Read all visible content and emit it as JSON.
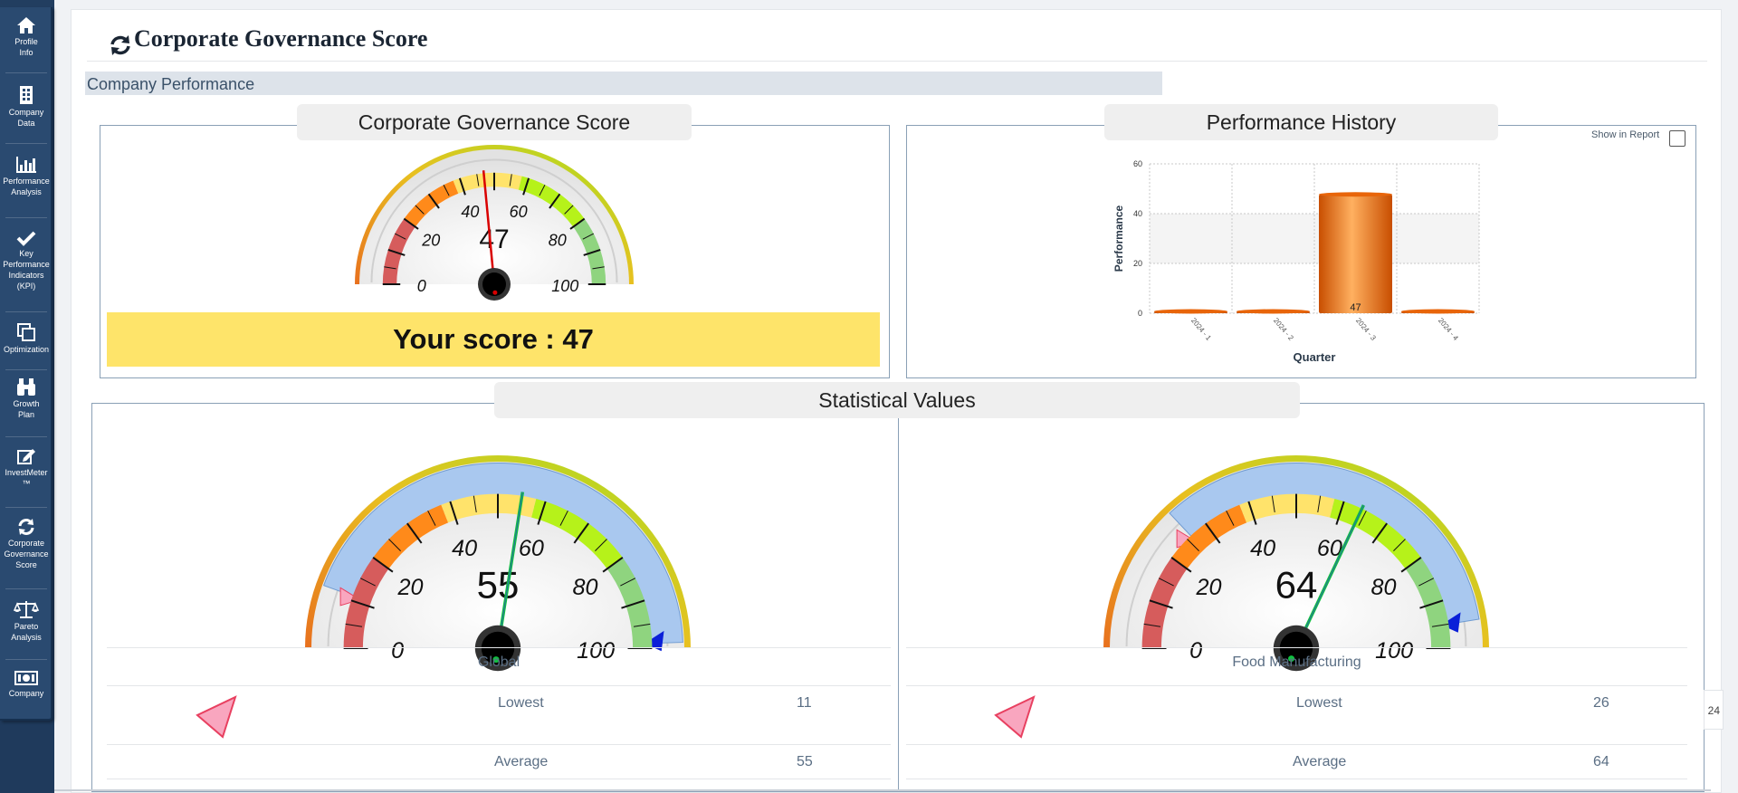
{
  "sidebar": {
    "items": [
      {
        "label": "Profile\nInfo",
        "icon": "home-icon"
      },
      {
        "label": "Company\nData",
        "icon": "building-icon"
      },
      {
        "label": "Performance\nAnalysis",
        "icon": "bar-chart-icon"
      },
      {
        "label": "Key\nPerformance\nIndicators\n(KPI)",
        "icon": "check-icon"
      },
      {
        "label": "Optimization",
        "icon": "copy-icon"
      },
      {
        "label": "Growth\nPlan",
        "icon": "binoculars-icon"
      },
      {
        "label": "InvestMeter\n™",
        "icon": "edit-icon"
      },
      {
        "label": "Corporate\nGovernance\nScore",
        "icon": "refresh-icon"
      },
      {
        "label": "Pareto\nAnalysis",
        "icon": "scale-icon"
      },
      {
        "label": "Company",
        "icon": "money-icon"
      }
    ]
  },
  "header": {
    "title": "Corporate Governance Score"
  },
  "section": {
    "label": "Company Performance"
  },
  "score_panel": {
    "title": "Corporate Governance Score",
    "gauge": {
      "value": 47,
      "value_label": "47",
      "ticks": [
        "0",
        "20",
        "40",
        "60",
        "80",
        "100"
      ]
    },
    "score_text": "Your score : 47"
  },
  "history_panel": {
    "title": "Performance History",
    "show_in_report": "Show in Report"
  },
  "stats_panel": {
    "title": "Statistical Values",
    "gauges": [
      {
        "value": 55,
        "value_label": "55",
        "range": [
          11,
          99
        ],
        "ticks": [
          "0",
          "20",
          "40",
          "60",
          "80",
          "100"
        ],
        "name": "Global",
        "rows": [
          {
            "label": "Lowest",
            "value": "11"
          },
          {
            "label": "Average",
            "value": "55"
          }
        ]
      },
      {
        "value": 64,
        "value_label": "64",
        "range": [
          26,
          95
        ],
        "ticks": [
          "0",
          "20",
          "40",
          "60",
          "80",
          "100"
        ],
        "name": "Food Manufacturing",
        "rows": [
          {
            "label": "Lowest",
            "value": "26"
          },
          {
            "label": "Average",
            "value": "64"
          }
        ]
      }
    ]
  },
  "page_stub": "24",
  "colors": {
    "sidebar": "#2a4a70",
    "score_box": "#fee46a",
    "bar": "#e8650a",
    "band_red": "#d65c5c",
    "band_orange": "#ff8a1a",
    "band_yellow": "#ffe36b",
    "band_lime": "#b6f21a",
    "band_green": "#8fd47f",
    "range_band": "#a9c8ef"
  },
  "chart_data": {
    "type": "bar",
    "categories": [
      "2024 - 1",
      "2024 - 2",
      "2024 - 3",
      "2024 - 4"
    ],
    "values": [
      0,
      0,
      47,
      0
    ],
    "data_labels": [
      "",
      "",
      "47",
      ""
    ],
    "xlabel": "Quarter",
    "ylabel": "Performance",
    "ylim": [
      0,
      60
    ],
    "yticks": [
      "0",
      "20",
      "40",
      "60"
    ],
    "grid": true
  }
}
